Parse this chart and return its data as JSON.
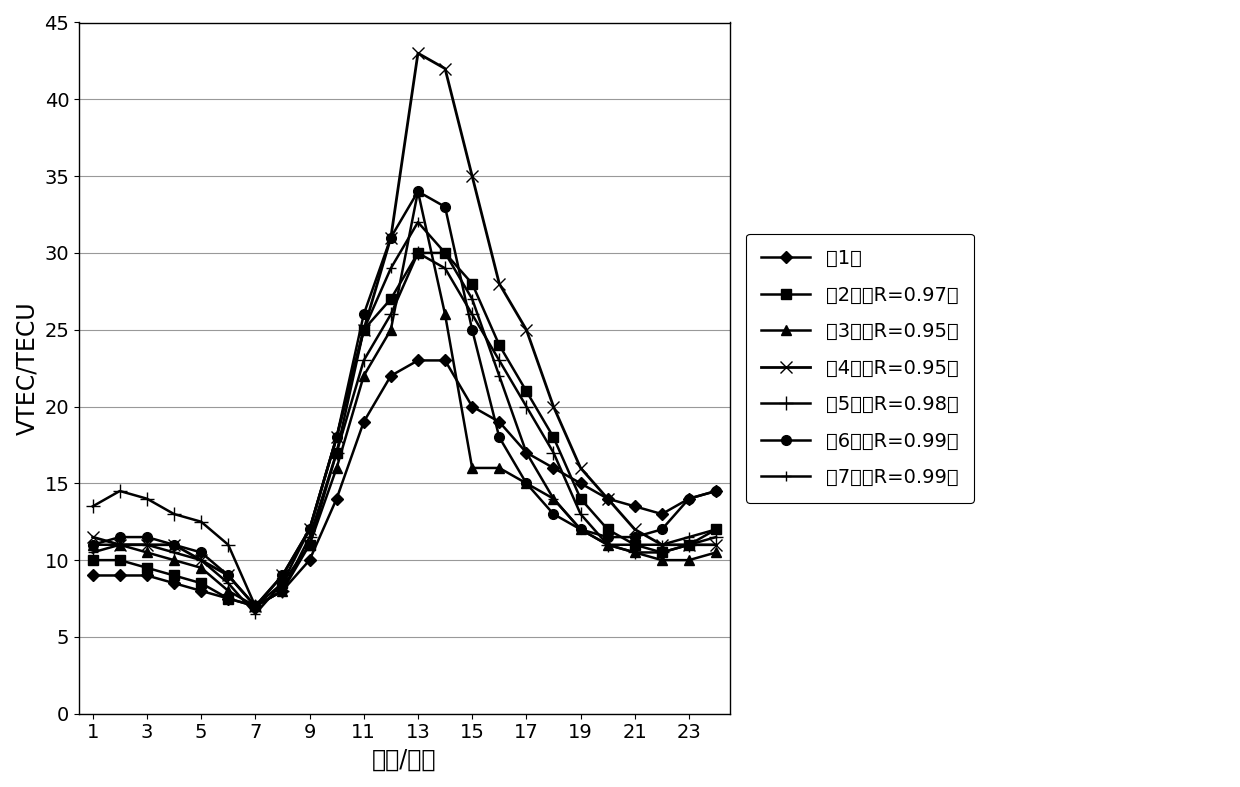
{
  "x": [
    1,
    2,
    3,
    4,
    5,
    6,
    7,
    8,
    9,
    10,
    11,
    12,
    13,
    14,
    15,
    16,
    17,
    18,
    19,
    20,
    21,
    22,
    23,
    24
  ],
  "series": [
    {
      "label": "療1天",
      "marker": "D",
      "markersize": 6,
      "linewidth": 1.8,
      "color": "#000000",
      "values": [
        9,
        9,
        9,
        8.5,
        8,
        7.5,
        7,
        8,
        10,
        14,
        19,
        22,
        23,
        23,
        20,
        19,
        17,
        16,
        15,
        14,
        13.5,
        13,
        14,
        14.5
      ]
    },
    {
      "label": "療2天（R=0.97）",
      "marker": "s",
      "markersize": 7,
      "linewidth": 1.8,
      "color": "#000000",
      "values": [
        10,
        10,
        9.5,
        9,
        8.5,
        7.5,
        7,
        8.5,
        11,
        17,
        25,
        27,
        30,
        30,
        28,
        24,
        21,
        18,
        14,
        12,
        11,
        10.5,
        11,
        12
      ]
    },
    {
      "label": "療3天（R=0.95）",
      "marker": "^",
      "markersize": 7,
      "linewidth": 1.8,
      "color": "#000000",
      "values": [
        11,
        11,
        10.5,
        10,
        9.5,
        8,
        7,
        8,
        11,
        16,
        22,
        25,
        34,
        26,
        16,
        16,
        15,
        14,
        12,
        11,
        10.5,
        10,
        10,
        10.5
      ]
    },
    {
      "label": "療4天（R=0.95）",
      "marker": "x",
      "markersize": 9,
      "linewidth": 2.0,
      "color": "#000000",
      "values": [
        11.5,
        11,
        11,
        11,
        10,
        9,
        7,
        9,
        12,
        18,
        25,
        31,
        43,
        42,
        35,
        28,
        25,
        20,
        16,
        14,
        12,
        11,
        11,
        11
      ]
    },
    {
      "label": "療5天（R=0.98）",
      "marker": "+",
      "markersize": 10,
      "linewidth": 1.8,
      "color": "#000000",
      "values": [
        13.5,
        14.5,
        14,
        13,
        12.5,
        11,
        7,
        8,
        11.5,
        17,
        23,
        26,
        30,
        29,
        26,
        23,
        20,
        17,
        13,
        11,
        10.5,
        10.5,
        11,
        11.5
      ]
    },
    {
      "label": "療6天（R=0.99）",
      "marker": "o",
      "markersize": 7,
      "linewidth": 1.8,
      "color": "#000000",
      "values": [
        11,
        11.5,
        11.5,
        11,
        10.5,
        9,
        7,
        9,
        12,
        18,
        26,
        31,
        34,
        33,
        25,
        18,
        15,
        13,
        12,
        11.5,
        11.5,
        12,
        14,
        14.5
      ]
    },
    {
      "label": "療7天（R=0.99）",
      "marker": "+",
      "markersize": 7,
      "linewidth": 1.8,
      "color": "#000000",
      "values": [
        10.5,
        11,
        11,
        10.5,
        10,
        8.5,
        6.5,
        8.5,
        12,
        18,
        25,
        29,
        32,
        30,
        27,
        22,
        17,
        14,
        12,
        11,
        11,
        11,
        11.5,
        12
      ]
    }
  ],
  "xlabel": "时刻/小时",
  "ylabel": "VTEC/TECU",
  "ylim": [
    0,
    45
  ],
  "yticks": [
    0,
    5,
    10,
    15,
    20,
    25,
    30,
    35,
    40,
    45
  ],
  "xticks": [
    1,
    3,
    5,
    7,
    9,
    11,
    13,
    15,
    17,
    19,
    21,
    23
  ],
  "background_color": "#ffffff",
  "grid_color": "#999999",
  "fontsize_label": 17,
  "fontsize_tick": 14,
  "fontsize_legend": 14
}
